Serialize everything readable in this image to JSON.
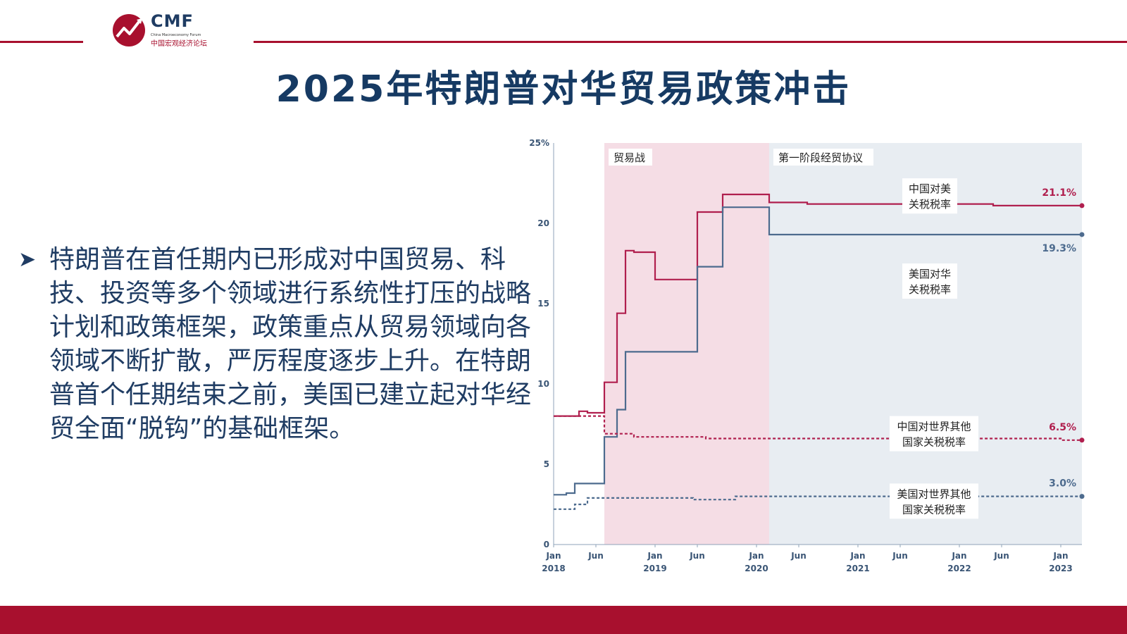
{
  "header": {
    "logo_text": "CMF",
    "logo_subtitle": "China Macroeconomy Forum",
    "logo_cn": "中国宏观经济论坛"
  },
  "title": "2025年特朗普对华贸易政策冲击",
  "bullet": {
    "text": "特朗普在首任期内已形成对中国贸易、科技、投资等多个领域进行系统性打压的战略计划和政策框架，政策重点从贸易领域向各领域不断扩散，严厉程度逐步上升。在特朗普首个任期结束之前，美国已建立起对华经贸全面“脱钩”的基础框架。"
  },
  "colors": {
    "accent_red": "#a8102e",
    "navy": "#163a63",
    "china_line": "#b01f4e",
    "us_line": "#4d6b8e",
    "tradewar_band": "#f5dde5",
    "phase1_band": "#e8edf2"
  },
  "chart_data": {
    "type": "line",
    "x_ticks": [
      {
        "t": 0,
        "label": "Jan",
        "year": "2018"
      },
      {
        "t": 5,
        "label": "Jun",
        "year": ""
      },
      {
        "t": 12,
        "label": "Jan",
        "year": "2019"
      },
      {
        "t": 17,
        "label": "Jun",
        "year": ""
      },
      {
        "t": 24,
        "label": "Jan",
        "year": "2020"
      },
      {
        "t": 29,
        "label": "Jun",
        "year": ""
      },
      {
        "t": 36,
        "label": "Jan",
        "year": "2021"
      },
      {
        "t": 41,
        "label": "Jun",
        "year": ""
      },
      {
        "t": 48,
        "label": "Jan",
        "year": "2022"
      },
      {
        "t": 53,
        "label": "Jun",
        "year": ""
      },
      {
        "t": 60,
        "label": "Jan",
        "year": "2023"
      }
    ],
    "x_range": [
      0,
      62.5
    ],
    "y_ticks": [
      0,
      5,
      10,
      15,
      20,
      25
    ],
    "y_tick_labels": [
      "0",
      "5",
      "10",
      "15",
      "20",
      "25%"
    ],
    "ylim": [
      0,
      25
    ],
    "bands": [
      {
        "label": "贸易战",
        "from": 6,
        "to": 25.5,
        "color": "#f5dde5"
      },
      {
        "label": "第一阶段经贸协议",
        "from": 25.5,
        "to": 62.5,
        "color": "#e8edf2"
      }
    ],
    "series": [
      {
        "name": "中国对美关税税率",
        "color": "#b01f4e",
        "style": "solid",
        "end_label": "21.1%",
        "points": [
          [
            0,
            8.0
          ],
          [
            3,
            8.0
          ],
          [
            3,
            8.3
          ],
          [
            4,
            8.3
          ],
          [
            4,
            8.2
          ],
          [
            6,
            8.2
          ],
          [
            6,
            10.1
          ],
          [
            7.5,
            10.1
          ],
          [
            7.5,
            14.4
          ],
          [
            8.5,
            14.4
          ],
          [
            8.5,
            18.3
          ],
          [
            9.5,
            18.3
          ],
          [
            9.5,
            18.2
          ],
          [
            12,
            18.2
          ],
          [
            12,
            16.5
          ],
          [
            17,
            16.5
          ],
          [
            17,
            20.7
          ],
          [
            20,
            20.7
          ],
          [
            20,
            21.8
          ],
          [
            25.5,
            21.8
          ],
          [
            25.5,
            21.3
          ],
          [
            30,
            21.3
          ],
          [
            30,
            21.2
          ],
          [
            52,
            21.2
          ],
          [
            52,
            21.1
          ],
          [
            62.5,
            21.1
          ]
        ]
      },
      {
        "name": "美国对华关税税率",
        "color": "#4d6b8e",
        "style": "solid",
        "end_label": "19.3%",
        "points": [
          [
            0,
            3.1
          ],
          [
            1.5,
            3.1
          ],
          [
            1.5,
            3.2
          ],
          [
            2.5,
            3.2
          ],
          [
            2.5,
            3.8
          ],
          [
            6,
            3.8
          ],
          [
            6,
            6.7
          ],
          [
            7.5,
            6.7
          ],
          [
            7.5,
            8.4
          ],
          [
            8.5,
            8.4
          ],
          [
            8.5,
            12.0
          ],
          [
            17,
            12.0
          ],
          [
            17,
            17.3
          ],
          [
            20,
            17.3
          ],
          [
            20,
            21.0
          ],
          [
            25.5,
            21.0
          ],
          [
            25.5,
            19.3
          ],
          [
            62.5,
            19.3
          ]
        ]
      },
      {
        "name": "中国对世界其他国家关税税率",
        "color": "#b01f4e",
        "style": "dashed",
        "end_label": "6.5%",
        "points": [
          [
            0,
            8.0
          ],
          [
            6,
            8.0
          ],
          [
            6,
            6.9
          ],
          [
            9.5,
            6.9
          ],
          [
            9.5,
            6.7
          ],
          [
            18,
            6.7
          ],
          [
            18,
            6.6
          ],
          [
            60,
            6.6
          ],
          [
            60,
            6.5
          ],
          [
            62.5,
            6.5
          ]
        ]
      },
      {
        "name": "美国对世界其他国家关税税率",
        "color": "#4d6b8e",
        "style": "dashed",
        "end_label": "3.0%",
        "points": [
          [
            0,
            2.2
          ],
          [
            2.5,
            2.2
          ],
          [
            2.5,
            2.5
          ],
          [
            4,
            2.5
          ],
          [
            4,
            2.9
          ],
          [
            16.5,
            2.9
          ],
          [
            16.5,
            2.8
          ],
          [
            21.5,
            2.8
          ],
          [
            21.5,
            3.0
          ],
          [
            62.5,
            3.0
          ]
        ]
      }
    ],
    "annotations": [
      {
        "line1": "中国对美",
        "line2": "关税税率",
        "t": 44.5,
        "v": 22.8
      },
      {
        "line1": "美国对华",
        "line2": "关税税率",
        "t": 44.5,
        "v": 17.5
      },
      {
        "line1": "中国对世界其他",
        "line2": "国家关税税率",
        "t": 45,
        "v": 8.0
      },
      {
        "line1": "美国对世界其他",
        "line2": "国家关税税率",
        "t": 45,
        "v": 3.8
      }
    ]
  }
}
